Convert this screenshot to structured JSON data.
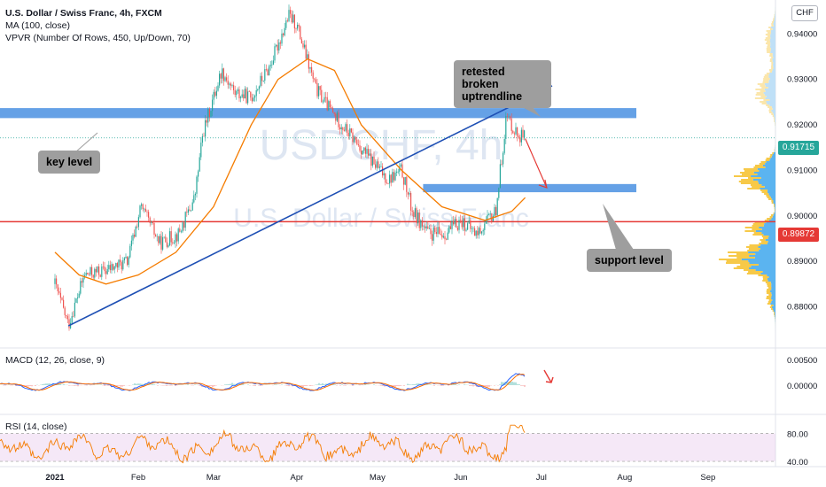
{
  "header": {
    "title": "U.S. Dollar / Swiss Franc, 4h, FXCM",
    "ma_label": "MA (100, close)",
    "vpvr_label": "VPVR (Number Of Rows, 450, Up/Down, 70)"
  },
  "watermark": {
    "symbol": "USDCHF, 4h",
    "name": "U.S. Dollar / Swiss Franc"
  },
  "currency_button": "CHF",
  "annotations": {
    "key_level": "key level",
    "retested": "retested broken uptrendline",
    "support": "support level"
  },
  "macd": {
    "label": "MACD (12, 26, close, 9)",
    "ticks": [
      "0.00500",
      "0.00000"
    ]
  },
  "rsi": {
    "label": "RSI (14, close)",
    "ticks": [
      "80.00",
      "40.00"
    ]
  },
  "price_labels": {
    "current": "0.91715",
    "line": "0.89872"
  },
  "colors": {
    "up": "#26a69a",
    "down": "#ef5350",
    "ma": "#f57c00",
    "trendline": "#1e4fb4",
    "zone": "#4a90e2",
    "support_line": "#e53935",
    "vp_up": "#5bb4f0",
    "vp_down": "#f7c948"
  },
  "chart_data": {
    "type": "candlestick",
    "symbol": "USDCHF",
    "timeframe": "4h",
    "x_labels": [
      "2021",
      "Feb",
      "Mar",
      "Apr",
      "May",
      "Jun",
      "Jul",
      "Aug",
      "Sep"
    ],
    "price_axis": {
      "ticks": [
        "0.94000",
        "0.93000",
        "0.92000",
        "0.91000",
        "0.90000",
        "0.89000",
        "0.88000"
      ],
      "range": [
        0.8725,
        0.9465
      ]
    },
    "current_price": 0.91715,
    "horizontal_line": 0.89872,
    "key_level_zone": [
      0.9215,
      0.9237
    ],
    "support_zone": [
      0.9052,
      0.907
    ],
    "uptrend_line": {
      "from": [
        "2021-01-06",
        0.8758
      ],
      "to": [
        "2021-07-05",
        0.9286
      ]
    },
    "close_path": [
      [
        "2021-01-01",
        0.885
      ],
      [
        "2021-01-06",
        0.876
      ],
      [
        "2021-01-12",
        0.887
      ],
      [
        "2021-01-20",
        0.888
      ],
      [
        "2021-01-28",
        0.89
      ],
      [
        "2021-02-02",
        0.902
      ],
      [
        "2021-02-09",
        0.894
      ],
      [
        "2021-02-16",
        0.896
      ],
      [
        "2021-02-22",
        0.904
      ],
      [
        "2021-02-25",
        0.918
      ],
      [
        "2021-03-04",
        0.932
      ],
      [
        "2021-03-09",
        0.927
      ],
      [
        "2021-03-15",
        0.926
      ],
      [
        "2021-03-22",
        0.933
      ],
      [
        "2021-03-29",
        0.944
      ],
      [
        "2021-04-01",
        0.942
      ],
      [
        "2021-04-08",
        0.928
      ],
      [
        "2021-04-15",
        0.922
      ],
      [
        "2021-04-22",
        0.917
      ],
      [
        "2021-04-29",
        0.912
      ],
      [
        "2021-05-05",
        0.908
      ],
      [
        "2021-05-10",
        0.91
      ],
      [
        "2021-05-14",
        0.901
      ],
      [
        "2021-05-20",
        0.896
      ],
      [
        "2021-05-26",
        0.896
      ],
      [
        "2021-06-01",
        0.899
      ],
      [
        "2021-06-07",
        0.896
      ],
      [
        "2021-06-14",
        0.901
      ],
      [
        "2021-06-18",
        0.922
      ],
      [
        "2021-06-22",
        0.918
      ],
      [
        "2021-06-25",
        0.9172
      ]
    ],
    "ma100": [
      [
        "2021-01-01",
        0.892
      ],
      [
        "2021-01-10",
        0.887
      ],
      [
        "2021-01-20",
        0.885
      ],
      [
        "2021-02-01",
        0.887
      ],
      [
        "2021-02-15",
        0.892
      ],
      [
        "2021-03-01",
        0.902
      ],
      [
        "2021-03-15",
        0.92
      ],
      [
        "2021-03-25",
        0.93
      ],
      [
        "2021-04-05",
        0.9345
      ],
      [
        "2021-04-15",
        0.932
      ],
      [
        "2021-04-25",
        0.92
      ],
      [
        "2021-05-10",
        0.91
      ],
      [
        "2021-05-25",
        0.902
      ],
      [
        "2021-06-10",
        0.899
      ],
      [
        "2021-06-20",
        0.901
      ],
      [
        "2021-06-25",
        0.904
      ]
    ],
    "projection_arrow": {
      "from": [
        "2021-06-25",
        0.917
      ],
      "to": [
        "2021-07-03",
        0.9062
      ]
    },
    "macd_series": {
      "range": [
        -0.0045,
        0.007
      ]
    },
    "rsi_series": {
      "range": [
        25,
        95
      ],
      "overbought_band": [
        30,
        70
      ]
    }
  }
}
